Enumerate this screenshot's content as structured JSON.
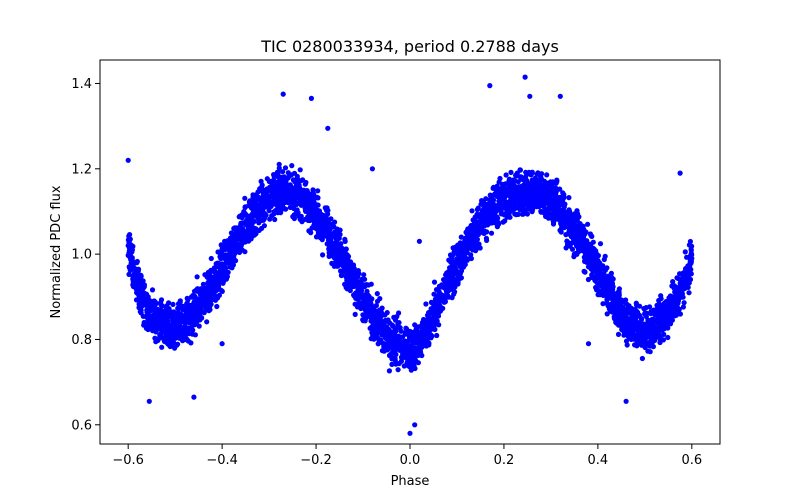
{
  "chart_data": {
    "type": "scatter",
    "title": "TIC 0280033934, period 0.2788 days",
    "xlabel": "Phase",
    "ylabel": "Normalized PDC flux",
    "xlim": [
      -0.66,
      0.66
    ],
    "ylim": [
      0.555,
      1.455
    ],
    "xticks": [
      -0.6,
      -0.4,
      -0.2,
      0.0,
      0.2,
      0.4,
      0.6
    ],
    "xtick_labels": [
      "−0.6",
      "−0.4",
      "−0.2",
      "0.0",
      "0.2",
      "0.4",
      "0.6"
    ],
    "yticks": [
      0.6,
      0.8,
      1.0,
      1.2,
      1.4
    ],
    "ytick_labels": [
      "0.6",
      "0.8",
      "1.0",
      "1.2",
      "1.4"
    ],
    "grid": false,
    "legend": "none",
    "marker_color": "#0000ff",
    "series": [
      {
        "points": [
          [
            -0.6,
            1.02
          ],
          [
            -0.58,
            0.93
          ],
          [
            -0.56,
            0.88
          ],
          [
            -0.54,
            0.85
          ],
          [
            -0.52,
            0.835
          ],
          [
            -0.5,
            0.83
          ],
          [
            -0.48,
            0.84
          ],
          [
            -0.46,
            0.86
          ],
          [
            -0.44,
            0.89
          ],
          [
            -0.42,
            0.93
          ],
          [
            -0.4,
            0.97
          ],
          [
            -0.38,
            1.01
          ],
          [
            -0.36,
            1.05
          ],
          [
            -0.34,
            1.08
          ],
          [
            -0.32,
            1.11
          ],
          [
            -0.3,
            1.13
          ],
          [
            -0.28,
            1.145
          ],
          [
            -0.26,
            1.15
          ],
          [
            -0.24,
            1.14
          ],
          [
            -0.22,
            1.12
          ],
          [
            -0.2,
            1.09
          ],
          [
            -0.18,
            1.06
          ],
          [
            -0.16,
            1.02
          ],
          [
            -0.14,
            0.98
          ],
          [
            -0.12,
            0.94
          ],
          [
            -0.1,
            0.9
          ],
          [
            -0.08,
            0.86
          ],
          [
            -0.06,
            0.83
          ],
          [
            -0.04,
            0.8
          ],
          [
            -0.02,
            0.78
          ],
          [
            0.0,
            0.77
          ],
          [
            0.02,
            0.79
          ],
          [
            0.04,
            0.83
          ],
          [
            0.06,
            0.88
          ],
          [
            0.08,
            0.93
          ],
          [
            0.1,
            0.98
          ],
          [
            0.12,
            1.02
          ],
          [
            0.14,
            1.06
          ],
          [
            0.16,
            1.09
          ],
          [
            0.18,
            1.11
          ],
          [
            0.2,
            1.13
          ],
          [
            0.22,
            1.14
          ],
          [
            0.24,
            1.145
          ],
          [
            0.26,
            1.145
          ],
          [
            0.28,
            1.14
          ],
          [
            0.3,
            1.125
          ],
          [
            0.32,
            1.1
          ],
          [
            0.34,
            1.07
          ],
          [
            0.36,
            1.04
          ],
          [
            0.38,
            1.0
          ],
          [
            0.4,
            0.96
          ],
          [
            0.42,
            0.92
          ],
          [
            0.44,
            0.88
          ],
          [
            0.46,
            0.85
          ],
          [
            0.48,
            0.83
          ],
          [
            0.5,
            0.82
          ],
          [
            0.52,
            0.83
          ],
          [
            0.54,
            0.85
          ],
          [
            0.56,
            0.88
          ],
          [
            0.58,
            0.92
          ],
          [
            0.6,
            0.99
          ]
        ],
        "outliers": [
          [
            -0.6,
            1.22
          ],
          [
            -0.555,
            0.655
          ],
          [
            -0.46,
            0.665
          ],
          [
            -0.4,
            0.79
          ],
          [
            -0.27,
            1.375
          ],
          [
            -0.21,
            1.365
          ],
          [
            -0.175,
            1.295
          ],
          [
            -0.08,
            1.2
          ],
          [
            0.0,
            0.58
          ],
          [
            0.01,
            0.6
          ],
          [
            0.02,
            1.03
          ],
          [
            0.17,
            1.395
          ],
          [
            0.245,
            1.415
          ],
          [
            0.255,
            1.37
          ],
          [
            0.32,
            1.37
          ],
          [
            0.38,
            0.79
          ],
          [
            0.46,
            0.655
          ],
          [
            0.575,
            1.19
          ]
        ]
      }
    ]
  }
}
